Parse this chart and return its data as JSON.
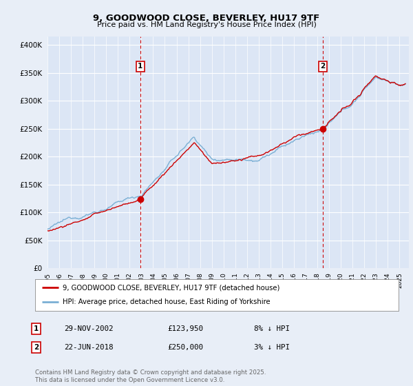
{
  "title_line1": "9, GOODWOOD CLOSE, BEVERLEY, HU17 9TF",
  "title_line2": "Price paid vs. HM Land Registry's House Price Index (HPI)",
  "ytick_values": [
    0,
    50000,
    100000,
    150000,
    200000,
    250000,
    300000,
    350000,
    400000
  ],
  "ylim": [
    0,
    415000
  ],
  "xlim_start": 1995,
  "xlim_end": 2025.8,
  "background_color": "#e8eef7",
  "plot_bg_color": "#dce6f5",
  "grid_color": "#ffffff",
  "sale1_year": 2002.91,
  "sale1_price": 123950,
  "sale1_label": "1",
  "sale1_date": "29-NOV-2002",
  "sale1_hpi_diff": "8% ↓ HPI",
  "sale2_year": 2018.47,
  "sale2_price": 250000,
  "sale2_label": "2",
  "sale2_date": "22-JUN-2018",
  "sale2_hpi_diff": "3% ↓ HPI",
  "red_line_color": "#cc0000",
  "blue_line_color": "#7aafd4",
  "legend_label_red": "9, GOODWOOD CLOSE, BEVERLEY, HU17 9TF (detached house)",
  "legend_label_blue": "HPI: Average price, detached house, East Riding of Yorkshire",
  "footer_text": "Contains HM Land Registry data © Crown copyright and database right 2025.\nThis data is licensed under the Open Government Licence v3.0.",
  "dashed_line_color": "#cc0000",
  "marker_color": "#cc0000"
}
